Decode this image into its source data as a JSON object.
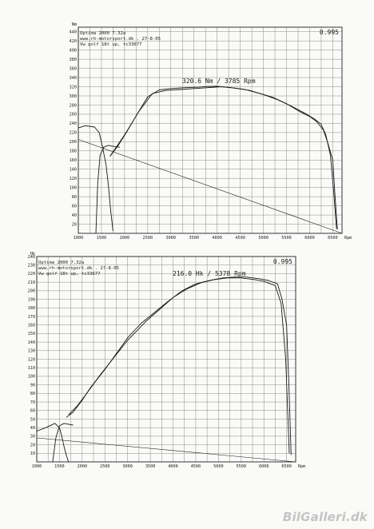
{
  "watermark": "BilGalleri.dk",
  "chart_data": [
    {
      "type": "line",
      "header": [
        "Optima 2000 7.32a",
        "www.rh-motorsport.dk      . 27-8-05",
        "Vw golf 18t up, tc33677"
      ],
      "code": "0.995",
      "peak_label": "320.6 Nm / 3785 Rpm",
      "y_axis_title": "Nm",
      "xlabel": "Rpm",
      "xlim": [
        1000,
        6700
      ],
      "ylim": [
        0,
        450
      ],
      "x_ticks": [
        1000,
        1500,
        2000,
        2500,
        3000,
        3500,
        4000,
        4500,
        5000,
        5500,
        6000,
        6500
      ],
      "y_ticks": [
        20,
        40,
        60,
        80,
        100,
        120,
        140,
        160,
        180,
        200,
        220,
        240,
        260,
        280,
        300,
        320,
        340,
        360,
        380,
        400,
        420,
        440
      ],
      "grid": true,
      "series": [
        {
          "x": [
            1680,
            1800,
            2000,
            2200,
            2500,
            2750,
            3000,
            3300,
            3600,
            3785,
            4000,
            4300,
            4600,
            4900,
            5200,
            5500,
            5800,
            6000,
            6150,
            6300,
            6400,
            6500,
            6550,
            6600
          ],
          "y": [
            168,
            185,
            215,
            248,
            298,
            313,
            316,
            318,
            319,
            320.6,
            321,
            318,
            314,
            306,
            297,
            283,
            265,
            255,
            244,
            225,
            195,
            160,
            80,
            8
          ]
        },
        {
          "x": [
            1700,
            1850,
            2050,
            2300,
            2600,
            2900,
            3200,
            3500,
            3800,
            4100,
            4400,
            4700,
            5000,
            5300,
            5600,
            5900,
            6100,
            6250,
            6350,
            6450,
            6520,
            6580
          ],
          "y": [
            170,
            190,
            222,
            265,
            305,
            312,
            314,
            316,
            318,
            320,
            317,
            312,
            303,
            292,
            278,
            262,
            250,
            238,
            215,
            170,
            90,
            10
          ]
        },
        {
          "x": [
            1000,
            1150,
            1350,
            1450,
            1520,
            1600,
            1650,
            1700,
            1750
          ],
          "y": [
            230,
            235,
            232,
            220,
            190,
            150,
            105,
            50,
            5
          ]
        },
        {
          "x": [
            1380,
            1420,
            1470,
            1550,
            1650,
            1750,
            1900
          ],
          "y": [
            0,
            110,
            170,
            188,
            192,
            190,
            188
          ]
        },
        {
          "x": [
            1000,
            6700
          ],
          "y": [
            205,
            0
          ]
        }
      ]
    },
    {
      "type": "line",
      "header": [
        "Optima 2000 7.32a",
        "www.rh-motorsport.dk      . 27-8-05",
        "Vw golf 18t up, tc33677"
      ],
      "code": "0.995",
      "peak_label": "216.0 Hk / 5378 Rpm",
      "y_axis_title": "Hk",
      "xlabel": "Rpm",
      "xlim": [
        1000,
        6700
      ],
      "ylim": [
        0,
        240
      ],
      "x_ticks": [
        1000,
        1500,
        2000,
        2500,
        3000,
        3500,
        4000,
        4500,
        5000,
        5500,
        6000,
        6500
      ],
      "y_ticks": [
        10,
        20,
        30,
        40,
        50,
        60,
        70,
        80,
        90,
        100,
        110,
        120,
        130,
        140,
        150,
        160,
        170,
        180,
        190,
        200,
        210,
        220,
        230,
        240
      ],
      "grid": true,
      "series": [
        {
          "x": [
            1650,
            1800,
            2000,
            2200,
            2500,
            2800,
            3000,
            3300,
            3600,
            3900,
            4200,
            4500,
            4800,
            5100,
            5378,
            5600,
            5900,
            6100,
            6300,
            6400,
            6500,
            6550,
            6600
          ],
          "y": [
            52,
            58,
            72,
            88,
            108,
            130,
            145,
            162,
            175,
            188,
            200,
            208,
            212,
            215,
            216,
            216,
            214,
            212,
            208,
            190,
            160,
            90,
            8
          ]
        },
        {
          "x": [
            1700,
            1900,
            2100,
            2400,
            2700,
            3000,
            3400,
            3700,
            4000,
            4300,
            4600,
            4900,
            5200,
            5500,
            5800,
            6000,
            6250,
            6380,
            6480,
            6560
          ],
          "y": [
            55,
            66,
            80,
            102,
            122,
            142,
            164,
            178,
            192,
            202,
            209,
            213,
            215,
            215,
            213,
            211,
            206,
            185,
            120,
            10
          ]
        },
        {
          "x": [
            1000,
            1200,
            1400,
            1500,
            1550,
            1600,
            1650,
            1700
          ],
          "y": [
            36,
            40,
            45,
            40,
            30,
            18,
            8,
            0
          ]
        },
        {
          "x": [
            1350,
            1420,
            1500,
            1600,
            1700,
            1800
          ],
          "y": [
            0,
            28,
            42,
            45,
            44,
            43
          ]
        },
        {
          "x": [
            1000,
            6700
          ],
          "y": [
            28,
            0
          ]
        }
      ]
    }
  ]
}
